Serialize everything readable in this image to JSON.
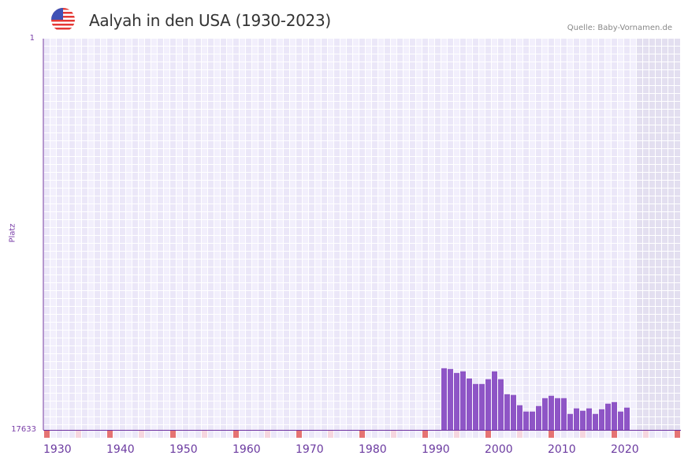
{
  "header": {
    "title": "Aalyah in den USA (1930-2023)",
    "flag": "usa-flag-icon",
    "source": "Quelle: Baby-Vornamen.de"
  },
  "axis": {
    "ylabel": "Platz",
    "ytop": "1",
    "ybottom": "17633",
    "xticks": [
      "1930",
      "1940",
      "1950",
      "1960",
      "1970",
      "1980",
      "1990",
      "2000",
      "2010",
      "2020"
    ]
  },
  "colors": {
    "bar": "#8e55c6",
    "axis": "#6b2f9e",
    "grid_light": "#f2effc",
    "grid_dark": "#ebe7f8",
    "future": "#e3dff0",
    "marker_strong": "#e57373",
    "marker_light": "#f6d6df"
  },
  "chart_data": {
    "type": "bar",
    "title": "Aalyah in den USA (1930-2023)",
    "xlabel": "",
    "ylabel": "Platz",
    "ylim": [
      17633,
      1
    ],
    "y_inverted": true,
    "x_range": [
      1929,
      2029
    ],
    "categories": [
      1992,
      1993,
      1994,
      1995,
      1996,
      1997,
      1998,
      1999,
      2000,
      2001,
      2002,
      2003,
      2004,
      2005,
      2006,
      2007,
      2008,
      2009,
      2010,
      2011,
      2012,
      2013,
      2014,
      2015,
      2016,
      2017,
      2018,
      2019,
      2020,
      2021
    ],
    "values": [
      14855,
      14890,
      15068,
      14997,
      15317,
      15565,
      15565,
      15352,
      14997,
      15352,
      16026,
      16061,
      16523,
      16808,
      16808,
      16559,
      16204,
      16097,
      16204,
      16204,
      16914,
      16665,
      16772,
      16665,
      16914,
      16701,
      16452,
      16381,
      16808,
      16630
    ],
    "annotations": [
      "Quelle: Baby-Vornamen.de"
    ]
  }
}
